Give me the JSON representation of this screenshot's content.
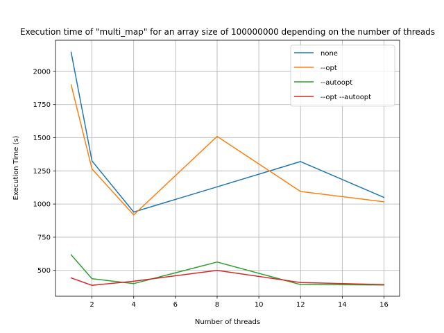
{
  "chart_data": {
    "type": "line",
    "title": "Execution time of \"multi_map\" for an array size of 100000000 depending on the number of threads",
    "xlabel": "Number of threads",
    "ylabel": "Execution Time (s)",
    "x": [
      1,
      2,
      4,
      8,
      12,
      16
    ],
    "xlim": [
      0.25,
      16.75
    ],
    "ylim": [
      305,
      2235
    ],
    "xticks": [
      2,
      4,
      6,
      8,
      10,
      12,
      14,
      16
    ],
    "yticks": [
      500,
      750,
      1000,
      1250,
      1500,
      1750,
      2000
    ],
    "grid": true,
    "legend_position": "top-right",
    "series": [
      {
        "name": "none",
        "color": "#1f77b4",
        "values": [
          2145,
          1325,
          940,
          1130,
          1320,
          1050
        ]
      },
      {
        "name": "--opt",
        "color": "#ff7f0e",
        "values": [
          1900,
          1265,
          918,
          1510,
          1095,
          1017
        ]
      },
      {
        "name": "--autoopt",
        "color": "#2ca02c",
        "values": [
          618,
          437,
          400,
          563,
          393,
          390
        ]
      },
      {
        "name": "--opt --autoopt",
        "color": "#d62728",
        "values": [
          443,
          387,
          418,
          500,
          408,
          393
        ]
      }
    ]
  }
}
